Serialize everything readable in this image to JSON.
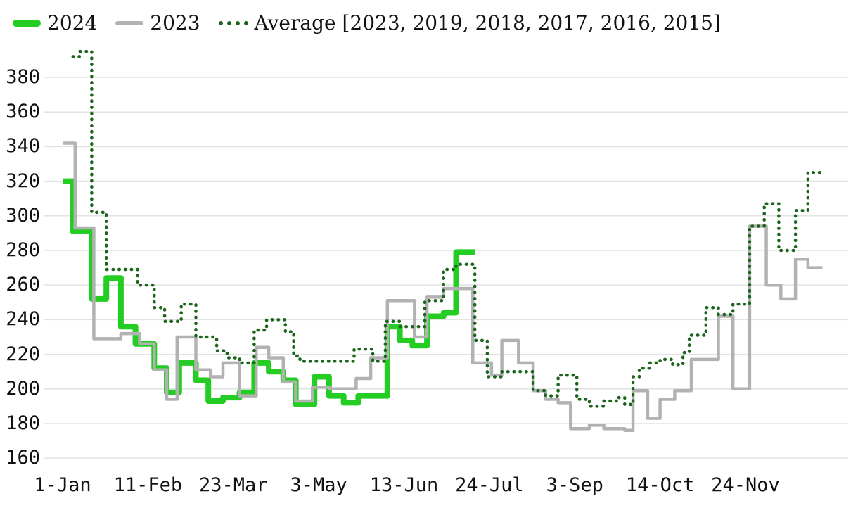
{
  "legend": {
    "items": [
      {
        "label": "2024",
        "color": "#24cd24",
        "style": "solid-thick"
      },
      {
        "label": "2023",
        "color": "#b2b2b2",
        "style": "solid"
      },
      {
        "label": "Average [2023, 2019, 2018, 2017, 2016, 2015]",
        "color": "#1b641b",
        "style": "dotted"
      }
    ]
  },
  "chart_data": {
    "type": "line",
    "step_mode": "step-after",
    "title": "",
    "xlabel": "",
    "ylabel": "",
    "x_unit": "day-of-year",
    "grid": "horizontal-only",
    "legend_position": "top-left",
    "background": "#ffffff",
    "grid_color": "#e2e2e2",
    "y_ticks": [
      380,
      360,
      340,
      320,
      300,
      280,
      260,
      240,
      220,
      200,
      180,
      160
    ],
    "ylim": [
      152,
      400
    ],
    "x_ticks": [
      {
        "label": "1-Jan",
        "day": 0
      },
      {
        "label": "11-Feb",
        "day": 41
      },
      {
        "label": "23-Mar",
        "day": 82
      },
      {
        "label": "3-May",
        "day": 123
      },
      {
        "label": "13-Jun",
        "day": 164
      },
      {
        "label": "24-Jul",
        "day": 205
      },
      {
        "label": "3-Sep",
        "day": 246
      },
      {
        "label": "14-Oct",
        "day": 287
      },
      {
        "label": "24-Nov",
        "day": 328
      }
    ],
    "series": [
      {
        "name": "2024",
        "color": "#24cd24",
        "width": 8,
        "dash": "solid",
        "end_day": 198,
        "steps": [
          [
            0,
            320
          ],
          [
            5,
            291
          ],
          [
            14,
            252
          ],
          [
            21,
            264
          ],
          [
            28,
            236
          ],
          [
            35,
            226
          ],
          [
            44,
            212
          ],
          [
            50,
            198
          ],
          [
            56,
            215
          ],
          [
            64,
            205
          ],
          [
            70,
            193
          ],
          [
            77,
            195
          ],
          [
            85,
            198
          ],
          [
            92,
            215
          ],
          [
            99,
            210
          ],
          [
            106,
            205
          ],
          [
            112,
            191
          ],
          [
            121,
            207
          ],
          [
            128,
            196
          ],
          [
            135,
            192
          ],
          [
            142,
            196
          ],
          [
            156,
            236
          ],
          [
            162,
            228
          ],
          [
            168,
            225
          ],
          [
            175,
            242
          ],
          [
            183,
            244
          ],
          [
            189,
            279
          ]
        ]
      },
      {
        "name": "2023",
        "color": "#b2b2b2",
        "width": 4.5,
        "dash": "solid",
        "end_day": 365,
        "steps": [
          [
            0,
            342
          ],
          [
            6,
            293
          ],
          [
            15,
            229
          ],
          [
            28,
            232
          ],
          [
            37,
            226
          ],
          [
            44,
            211
          ],
          [
            50,
            194
          ],
          [
            55,
            230
          ],
          [
            64,
            211
          ],
          [
            71,
            207
          ],
          [
            77,
            215
          ],
          [
            85,
            196
          ],
          [
            93,
            224
          ],
          [
            99,
            218
          ],
          [
            106,
            204
          ],
          [
            112,
            193
          ],
          [
            120,
            201
          ],
          [
            128,
            200
          ],
          [
            141,
            206
          ],
          [
            148,
            218
          ],
          [
            156,
            251
          ],
          [
            169,
            230
          ],
          [
            175,
            253
          ],
          [
            183,
            258
          ],
          [
            197,
            215
          ],
          [
            206,
            208
          ],
          [
            211,
            228
          ],
          [
            219,
            215
          ],
          [
            226,
            199
          ],
          [
            232,
            194
          ],
          [
            238,
            192
          ],
          [
            244,
            177
          ],
          [
            253,
            179
          ],
          [
            260,
            177
          ],
          [
            270,
            176
          ],
          [
            274,
            199
          ],
          [
            281,
            183
          ],
          [
            287,
            194
          ],
          [
            294,
            199
          ],
          [
            302,
            217
          ],
          [
            315,
            242
          ],
          [
            322,
            200
          ],
          [
            330,
            294
          ],
          [
            338,
            260
          ],
          [
            345,
            252
          ],
          [
            352,
            275
          ],
          [
            358,
            270
          ]
        ]
      },
      {
        "name": "Average [2023, 2019, 2018, 2017, 2016, 2015]",
        "color": "#1b641b",
        "width": 4.5,
        "dash": "dotted",
        "end_day": 364,
        "steps": [
          [
            5,
            392
          ],
          [
            8,
            395
          ],
          [
            14,
            302
          ],
          [
            21,
            269
          ],
          [
            36,
            260
          ],
          [
            44,
            247
          ],
          [
            49,
            239
          ],
          [
            57,
            249
          ],
          [
            64,
            230
          ],
          [
            74,
            222
          ],
          [
            79,
            218
          ],
          [
            85,
            215
          ],
          [
            92,
            234
          ],
          [
            98,
            240
          ],
          [
            107,
            233
          ],
          [
            111,
            219
          ],
          [
            114,
            216
          ],
          [
            140,
            223
          ],
          [
            149,
            216
          ],
          [
            155,
            239
          ],
          [
            162,
            236
          ],
          [
            174,
            251
          ],
          [
            183,
            269
          ],
          [
            189,
            272
          ],
          [
            198,
            228
          ],
          [
            204,
            207
          ],
          [
            211,
            210
          ],
          [
            226,
            199
          ],
          [
            232,
            196
          ],
          [
            238,
            208
          ],
          [
            247,
            194
          ],
          [
            253,
            190
          ],
          [
            260,
            193
          ],
          [
            266,
            195
          ],
          [
            270,
            191
          ],
          [
            274,
            207
          ],
          [
            277,
            212
          ],
          [
            282,
            215
          ],
          [
            287,
            217
          ],
          [
            293,
            214
          ],
          [
            298,
            221
          ],
          [
            301,
            231
          ],
          [
            309,
            247
          ],
          [
            315,
            243
          ],
          [
            322,
            249
          ],
          [
            330,
            294
          ],
          [
            337,
            307
          ],
          [
            344,
            280
          ],
          [
            352,
            303
          ],
          [
            358,
            325
          ]
        ]
      }
    ]
  }
}
